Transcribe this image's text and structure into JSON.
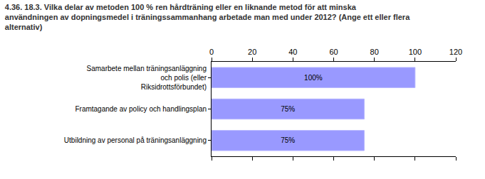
{
  "chart_data": {
    "type": "bar",
    "title": "4.36. 18.3. Vilka delar av metoden 100 % ren hårdträning eller en liknande metod för att minska användningen av dopningsmedel i träningssammanhang arbetade man med under 2012? (Ange ett eller flera alternativ)",
    "orientation": "horizontal",
    "categories": [
      "Samarbete mellan träningsanläggning och polis (eller Riksidrottsförbundet)",
      "Framtagande av policy och handlingsplan",
      "Utbildning av personal på träningsanläggning"
    ],
    "values": [
      100,
      75,
      75
    ],
    "value_labels": [
      "100%",
      "75%",
      "75%"
    ],
    "data_labels": true,
    "color": "#9999ff",
    "xlim": [
      0,
      120
    ],
    "xticks": [
      0,
      20,
      40,
      60,
      80,
      100,
      120
    ],
    "grid": false
  }
}
